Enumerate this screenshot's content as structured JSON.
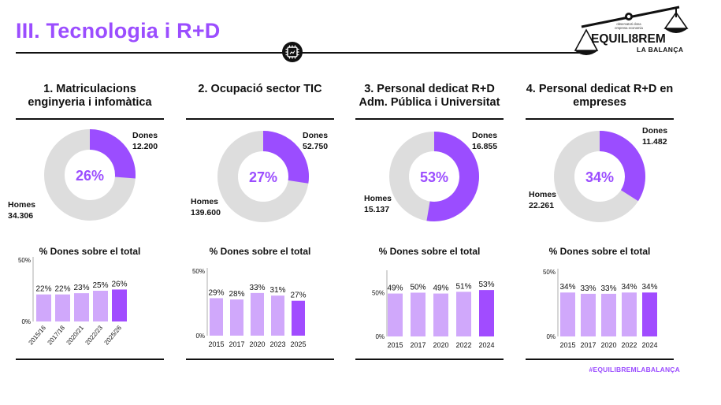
{
  "header": {
    "title": "III. Tecnologia i R+D",
    "hashtag": "#EQUILIBREMLABALANÇA",
    "logo": {
      "brand": "EQUILI8REM",
      "tagline": "LA BALANÇA",
      "seal_line1": "observatori dona",
      "seal_line2": "empresa economia"
    }
  },
  "colors": {
    "accent": "#9b4dff",
    "purple": "#9b4dff",
    "grey": "#dddddd",
    "bar_light": "#d0a8fb",
    "bar_dark": "#a14cff"
  },
  "legend_dones": "Dones",
  "legend_homes": "Homes",
  "chart_data": [
    {
      "type": "pie",
      "title": "1. Matriculacions enginyeria i infomàtica",
      "donut": {
        "center_label": "26%",
        "dones_value": "12.200",
        "homes_value": "34.306",
        "dones": 12200,
        "homes": 34306
      },
      "bar": {
        "type": "bar",
        "title": "% Dones sobre el total",
        "categories": [
          "2015/16",
          "2017/18",
          "2020/21",
          "2022/23",
          "2025/26"
        ],
        "values": [
          22,
          22,
          23,
          25,
          26
        ],
        "labels": [
          "22%",
          "22%",
          "23%",
          "25%",
          "26%"
        ],
        "yticks": [
          "50%",
          "0%"
        ],
        "ylim": [
          0,
          50
        ],
        "rotated_labels": true
      }
    },
    {
      "type": "pie",
      "title": "2. Ocupació sector TIC",
      "donut": {
        "center_label": "27%",
        "dones_value": "52.750",
        "homes_value": "139.600",
        "dones": 52750,
        "homes": 139600
      },
      "bar": {
        "type": "bar",
        "title": "% Dones sobre el total",
        "categories": [
          "2015",
          "2017",
          "2020",
          "2023",
          "2025"
        ],
        "values": [
          29,
          28,
          33,
          31,
          27
        ],
        "labels": [
          "29%",
          "28%",
          "33%",
          "31%",
          "27%"
        ],
        "yticks": [
          "50%",
          "0%"
        ],
        "ylim": [
          0,
          50
        ],
        "rotated_labels": false
      }
    },
    {
      "type": "pie",
      "title": "3. Personal dedicat R+D Adm. Pública i Universitat",
      "donut": {
        "center_label": "53%",
        "dones_value": "16.855",
        "homes_value": "15.137",
        "dones": 16855,
        "homes": 15137
      },
      "bar": {
        "type": "bar",
        "title": "% Dones sobre el total",
        "categories": [
          "2015",
          "2017",
          "2020",
          "2022",
          "2024"
        ],
        "values": [
          49,
          50,
          49,
          51,
          53
        ],
        "labels": [
          "49%",
          "50%",
          "49%",
          "51%",
          "53%"
        ],
        "yticks": [
          "50%",
          "0%"
        ],
        "ylim": [
          0,
          72
        ],
        "rotated_labels": false
      }
    },
    {
      "type": "pie",
      "title": "4. Personal dedicat R+D en empreses",
      "donut": {
        "center_label": "34%",
        "dones_value": "11.482",
        "homes_value": "22.261",
        "dones": 11482,
        "homes": 22261
      },
      "bar": {
        "type": "bar",
        "title": "% Dones sobre el total",
        "categories": [
          "2015",
          "2017",
          "2020",
          "2022",
          "2024"
        ],
        "values": [
          34,
          33,
          33,
          34,
          34
        ],
        "labels": [
          "34%",
          "33%",
          "33%",
          "34%",
          "34%"
        ],
        "yticks": [
          "50%",
          "0%"
        ],
        "ylim": [
          0,
          50
        ],
        "rotated_labels": false
      }
    }
  ]
}
